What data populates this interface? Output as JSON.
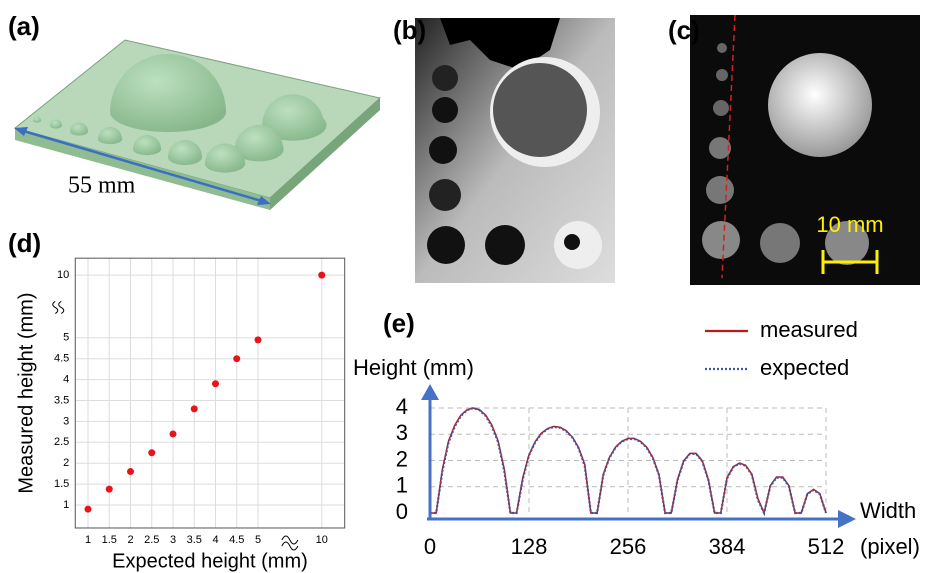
{
  "panels": {
    "labels": [
      "(a)",
      "(b)",
      "(c)",
      "(d)",
      "(e)"
    ],
    "a": {
      "annotation": "55 mm"
    },
    "c": {
      "scale_bar": "10 mm"
    }
  },
  "chart_data": [
    {
      "type": "scatter",
      "x_label": "Expected height (mm)",
      "y_label": "Measured height (mm)",
      "x": [
        1,
        1.5,
        2,
        2.5,
        3,
        3.5,
        4,
        4.5,
        5,
        10
      ],
      "values": [
        0.9,
        1.38,
        1.8,
        2.25,
        2.7,
        3.3,
        3.9,
        4.5,
        4.95,
        10
      ],
      "color": "#e8141b",
      "xlim": [
        0.7,
        11.8
      ],
      "ylim": [
        0.45,
        11.35
      ],
      "xticks": [
        1,
        1.5,
        2,
        2.5,
        3,
        3.5,
        4,
        4.5,
        5,
        10
      ],
      "yticks": [
        1,
        1.5,
        2,
        2.5,
        3,
        3.5,
        4,
        4.5,
        5,
        10
      ],
      "x_break": true,
      "y_break": true,
      "grid": true
    },
    {
      "type": "line",
      "x_label": [
        "Width",
        "(pixel)"
      ],
      "y_label": "Height (mm)",
      "x": [
        0,
        8,
        16,
        24,
        32,
        40,
        48,
        56,
        64,
        72,
        80,
        88,
        96,
        104,
        112,
        120,
        128,
        136,
        144,
        152,
        160,
        168,
        176,
        184,
        192,
        200,
        208,
        216,
        224,
        232,
        240,
        248,
        256,
        264,
        272,
        280,
        288,
        296,
        304,
        312,
        320,
        328,
        336,
        344,
        352,
        360,
        368,
        376,
        384,
        392,
        400,
        408,
        416,
        424,
        432,
        440,
        448,
        456,
        464,
        472,
        480,
        488,
        496,
        504,
        512
      ],
      "series": [
        {
          "name": "measured",
          "color": "#c0171f",
          "style": "solid",
          "values": [
            0,
            0,
            1.67,
            2.75,
            3.35,
            3.73,
            3.93,
            4.0,
            3.93,
            3.73,
            3.35,
            2.75,
            1.67,
            0,
            0,
            1.35,
            2.22,
            2.72,
            3.04,
            3.22,
            3.3,
            3.27,
            3.14,
            2.9,
            2.5,
            1.86,
            0,
            0,
            1.47,
            2.12,
            2.51,
            2.73,
            2.84,
            2.84,
            2.73,
            2.51,
            2.12,
            1.47,
            0,
            0,
            1.27,
            1.99,
            2.27,
            2.27,
            1.99,
            1.27,
            0,
            0,
            1.34,
            1.76,
            1.9,
            1.82,
            1.48,
            0.55,
            0,
            1.04,
            1.37,
            1.37,
            1.04,
            0,
            0,
            0.74,
            0.9,
            0.74,
            0
          ]
        },
        {
          "name": "expected",
          "color": "#3b5a9a",
          "style": "dotted",
          "values": [
            0,
            0,
            1.6,
            2.7,
            3.3,
            3.7,
            3.92,
            4.0,
            3.92,
            3.7,
            3.3,
            2.7,
            1.6,
            0,
            0,
            1.3,
            2.2,
            2.7,
            3.02,
            3.2,
            3.28,
            3.25,
            3.12,
            2.88,
            2.48,
            1.8,
            0,
            0,
            1.45,
            2.1,
            2.5,
            2.72,
            2.82,
            2.82,
            2.72,
            2.5,
            2.1,
            1.45,
            0,
            0,
            1.25,
            1.97,
            2.25,
            2.25,
            1.97,
            1.25,
            0,
            0,
            1.32,
            1.75,
            1.88,
            1.8,
            1.46,
            0.5,
            0,
            1.02,
            1.35,
            1.35,
            1.02,
            0,
            0,
            0.72,
            0.88,
            0.72,
            0
          ]
        }
      ],
      "xlim": [
        0,
        512
      ],
      "ylim": [
        0,
        4
      ],
      "xticks": [
        0,
        128,
        256,
        384,
        512
      ],
      "yticks": [
        0,
        1,
        2,
        3,
        4
      ],
      "grid": true,
      "legend": "top-right"
    }
  ]
}
